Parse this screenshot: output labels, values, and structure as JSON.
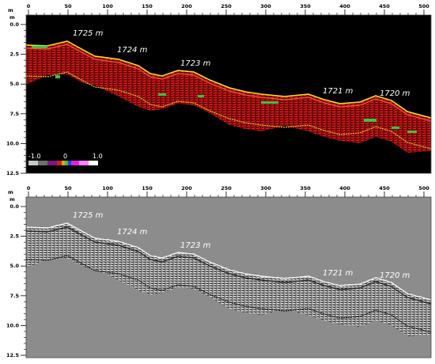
{
  "axes": {
    "x_unit": "m",
    "y_unit": "m",
    "x_ticks": [
      "0",
      "50",
      "100",
      "150",
      "200",
      "250",
      "300",
      "350",
      "400",
      "450",
      "500"
    ],
    "y_ticks": [
      "0.0",
      "2.5",
      "5.0",
      "7.5",
      "10.0",
      "12.5"
    ]
  },
  "top_panel": {
    "labels": [
      "1725 m",
      "1724 m",
      "1723 m",
      "1721 m",
      "1720 m"
    ],
    "colorbar": {
      "min_label": "-1.0",
      "mid_label": "0",
      "max_label": "1.0"
    }
  },
  "bottom_panel": {
    "labels": [
      "1725 m",
      "1724 m",
      "1723 m",
      "1721 m",
      "1720 m"
    ]
  },
  "colors": {
    "top_background": "#000000",
    "bottom_background": "#8c8c8c",
    "reflector": "#d01010",
    "highlight": "#e8e030",
    "accent_green": "#40c040"
  }
}
